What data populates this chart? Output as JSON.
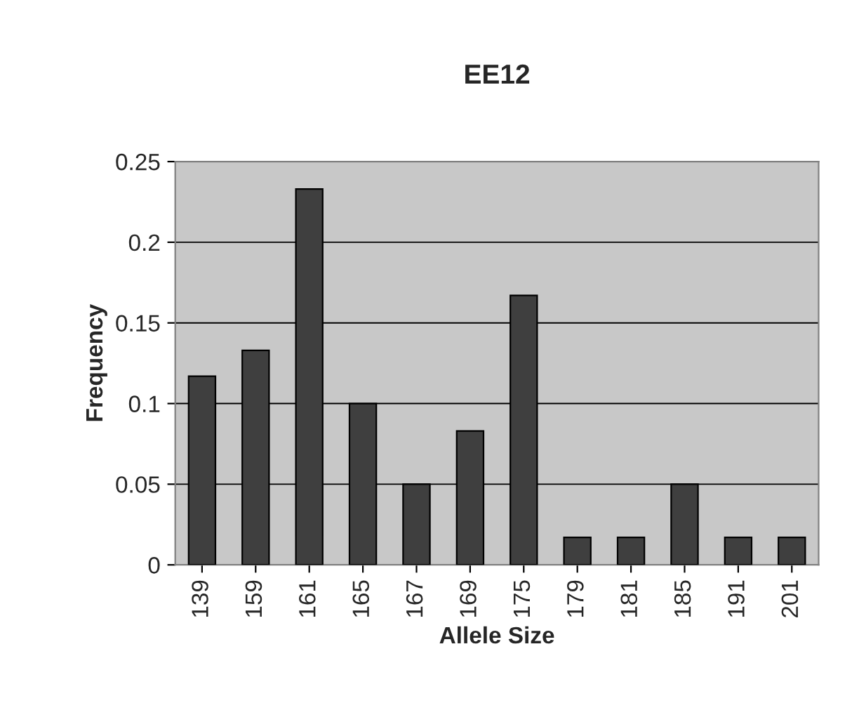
{
  "chart_data": {
    "type": "bar",
    "title": "EE12",
    "xlabel": "Allele Size",
    "ylabel": "Frequency",
    "categories": [
      "139",
      "159",
      "161",
      "165",
      "167",
      "169",
      "175",
      "179",
      "181",
      "185",
      "191",
      "201"
    ],
    "values": [
      0.117,
      0.133,
      0.233,
      0.1,
      0.05,
      0.083,
      0.167,
      0.017,
      0.017,
      0.05,
      0.017,
      0.017
    ],
    "color": "#3f3f3f",
    "ylim": [
      0,
      0.25
    ],
    "yticks": [
      0,
      0.05,
      0.1,
      0.15,
      0.2,
      0.25
    ],
    "grid": "y"
  }
}
